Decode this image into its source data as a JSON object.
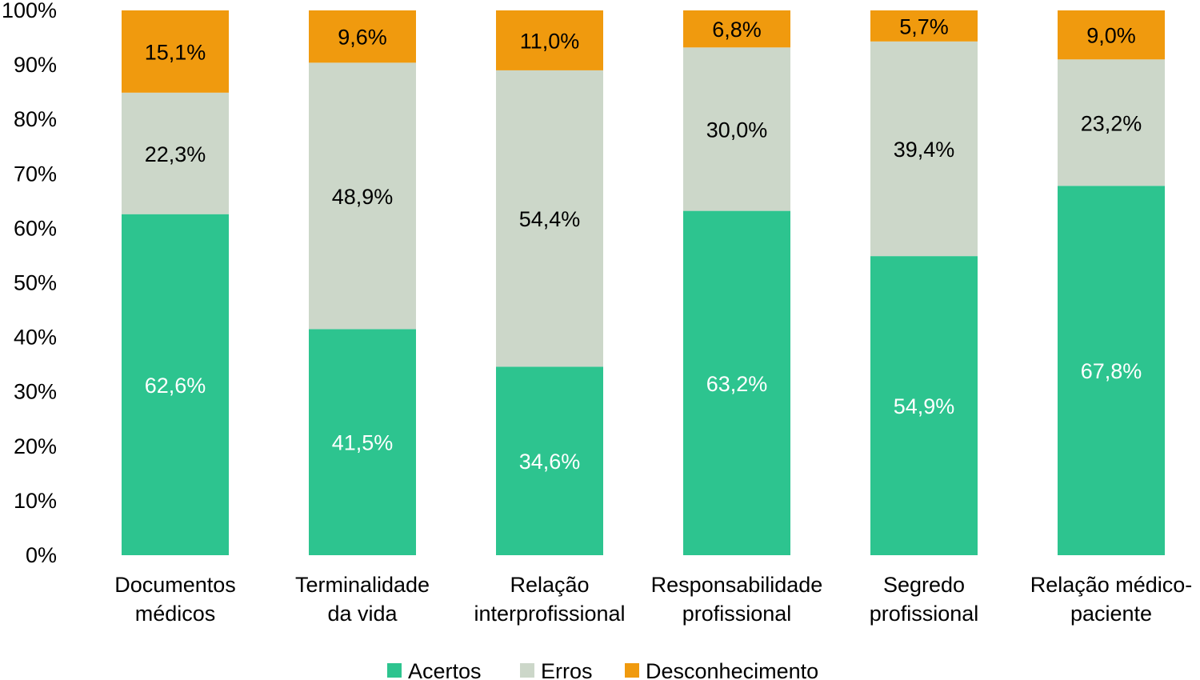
{
  "chart_data": {
    "type": "bar",
    "stacked": true,
    "percent_format": true,
    "categories": [
      [
        "Documentos",
        "médicos"
      ],
      [
        "Terminalidade",
        "da vida"
      ],
      [
        "Relação",
        "interprofissional"
      ],
      [
        "Responsabilidade",
        "profissional"
      ],
      [
        "Segredo",
        "profissional"
      ],
      [
        "Relação médico-",
        "paciente"
      ]
    ],
    "series": [
      {
        "name": "Acertos",
        "color": "#2dc48f",
        "label_color": "#ffffff",
        "values": [
          62.6,
          41.5,
          34.6,
          63.2,
          54.9,
          67.8
        ],
        "labels": [
          "62,6%",
          "41,5%",
          "34,6%",
          "63,2%",
          "54,9%",
          "67,8%"
        ]
      },
      {
        "name": "Erros",
        "color": "#ccd7c9",
        "label_color": "#000000",
        "values": [
          22.3,
          48.9,
          54.4,
          30.0,
          39.4,
          23.2
        ],
        "labels": [
          "22,3%",
          "48,9%",
          "54,4%",
          "30,0%",
          "39,4%",
          "23,2%"
        ]
      },
      {
        "name": "Desconhecimento",
        "color": "#f09a0e",
        "label_color": "#000000",
        "values": [
          15.1,
          9.6,
          11.0,
          6.8,
          5.7,
          9.0
        ],
        "labels": [
          "15,1%",
          "9,6%",
          "11,0%",
          "6,8%",
          "5,7%",
          "9,0%"
        ]
      }
    ],
    "ylim": [
      0,
      100
    ],
    "yticks": [
      0,
      10,
      20,
      30,
      40,
      50,
      60,
      70,
      80,
      90,
      100
    ],
    "ytick_labels": [
      "0%",
      "10%",
      "20%",
      "30%",
      "40%",
      "50%",
      "60%",
      "70%",
      "80%",
      "90%",
      "100%"
    ],
    "grid": false,
    "legend_position": "bottom"
  }
}
